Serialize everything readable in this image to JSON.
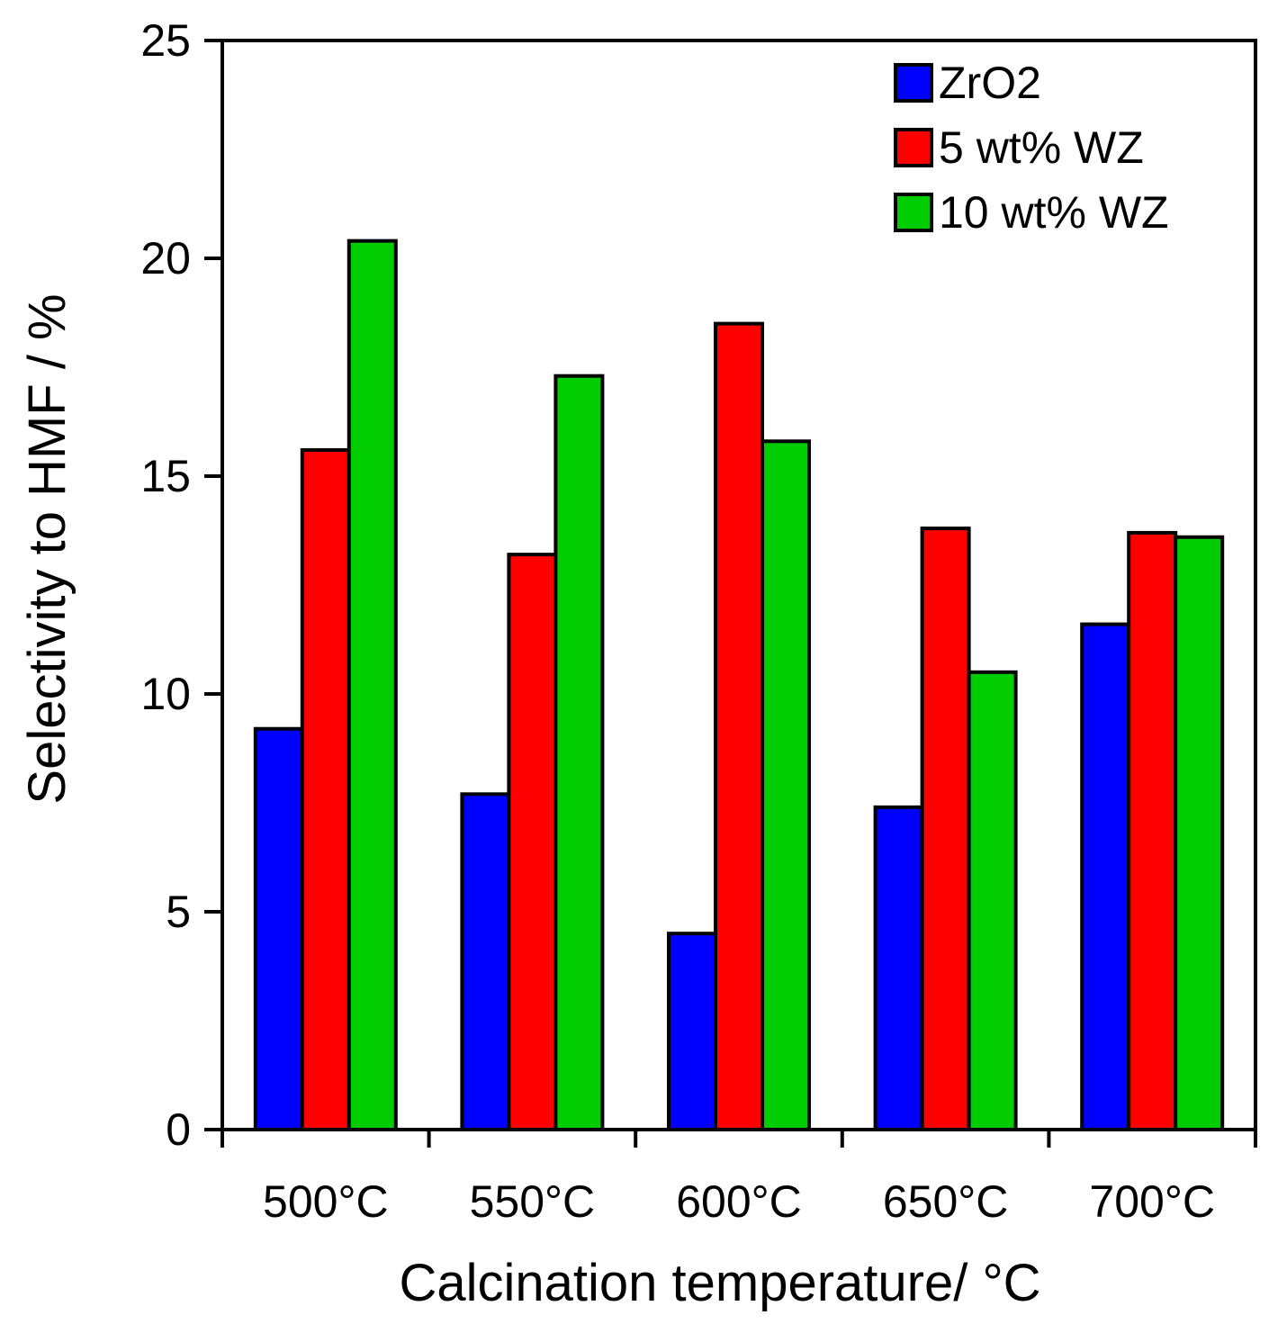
{
  "chart_data": {
    "type": "bar",
    "title": "",
    "xlabel": "Calcination temperature/ °C",
    "ylabel": "Selectivity to HMF / %",
    "categories": [
      "500°C",
      "550°C",
      "600°C",
      "650°C",
      "700°C"
    ],
    "ylim": [
      0,
      25
    ],
    "yticks": [
      0,
      5,
      10,
      15,
      20,
      25
    ],
    "grid": false,
    "legend_position": "top-right",
    "series": [
      {
        "name": "ZrO2",
        "color": "#0000FF",
        "values": [
          9.2,
          7.7,
          4.5,
          7.4,
          11.6
        ]
      },
      {
        "name": "5 wt% WZ",
        "color": "#FF0000",
        "values": [
          15.6,
          13.2,
          18.5,
          13.8,
          13.7
        ]
      },
      {
        "name": "10 wt% WZ",
        "color": "#00CC00",
        "values": [
          20.4,
          17.3,
          15.8,
          10.5,
          13.6
        ]
      }
    ]
  }
}
